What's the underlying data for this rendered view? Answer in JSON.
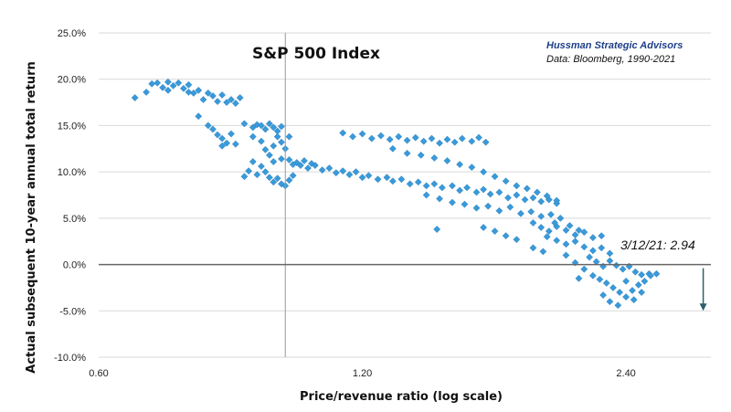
{
  "chart_data": {
    "type": "scatter",
    "title": "S&P 500 Index",
    "source_line1": "Hussman Strategic Advisors",
    "source_line2": "Data: Bloomberg, 1990-2021",
    "xlabel": "Price/revenue ratio (log scale)",
    "ylabel": "Actual subsequent 10-year annual total return",
    "x_scale": "log",
    "xlim": [
      0.6,
      3.0
    ],
    "ylim": [
      -0.1,
      0.25
    ],
    "x_ticks": [
      {
        "value": 0.6,
        "label": "0.60"
      },
      {
        "value": 1.2,
        "label": "1.20"
      },
      {
        "value": 2.4,
        "label": "2.40"
      }
    ],
    "y_ticks": [
      {
        "value": 0.25,
        "label": "25.0%"
      },
      {
        "value": 0.2,
        "label": "20.0%"
      },
      {
        "value": 0.15,
        "label": "15.0%"
      },
      {
        "value": 0.1,
        "label": "10.0%"
      },
      {
        "value": 0.05,
        "label": "5.0%"
      },
      {
        "value": 0.0,
        "label": "0.0%"
      },
      {
        "value": -0.05,
        "label": "-5.0%"
      },
      {
        "value": -0.1,
        "label": "-10.0%"
      }
    ],
    "grid": "horizontal",
    "zero_line": true,
    "reference_vline_x": 0.98,
    "marker_color": "#3a9ad9",
    "annotation": {
      "text": "3/12/21: 2.94",
      "x": 2.94,
      "arrow_to_y": -0.05
    },
    "series": [
      {
        "points": [
          [
            0.66,
            0.18
          ],
          [
            0.68,
            0.186
          ],
          [
            0.69,
            0.195
          ],
          [
            0.7,
            0.196
          ],
          [
            0.71,
            0.191
          ],
          [
            0.72,
            0.188
          ],
          [
            0.72,
            0.197
          ],
          [
            0.73,
            0.193
          ],
          [
            0.74,
            0.196
          ],
          [
            0.75,
            0.19
          ],
          [
            0.76,
            0.186
          ],
          [
            0.76,
            0.194
          ],
          [
            0.77,
            0.185
          ],
          [
            0.78,
            0.188
          ],
          [
            0.79,
            0.178
          ],
          [
            0.8,
            0.185
          ],
          [
            0.81,
            0.182
          ],
          [
            0.82,
            0.176
          ],
          [
            0.83,
            0.183
          ],
          [
            0.84,
            0.175
          ],
          [
            0.85,
            0.178
          ],
          [
            0.86,
            0.174
          ],
          [
            0.87,
            0.18
          ],
          [
            0.78,
            0.16
          ],
          [
            0.8,
            0.15
          ],
          [
            0.81,
            0.146
          ],
          [
            0.82,
            0.14
          ],
          [
            0.83,
            0.136
          ],
          [
            0.84,
            0.131
          ],
          [
            0.85,
            0.141
          ],
          [
            0.86,
            0.13
          ],
          [
            0.83,
            0.128
          ],
          [
            0.88,
            0.152
          ],
          [
            0.9,
            0.148
          ],
          [
            0.91,
            0.151
          ],
          [
            0.92,
            0.15
          ],
          [
            0.93,
            0.146
          ],
          [
            0.94,
            0.152
          ],
          [
            0.95,
            0.148
          ],
          [
            0.96,
            0.144
          ],
          [
            0.97,
            0.149
          ],
          [
            0.9,
            0.138
          ],
          [
            0.92,
            0.133
          ],
          [
            0.93,
            0.124
          ],
          [
            0.94,
            0.118
          ],
          [
            0.95,
            0.128
          ],
          [
            0.96,
            0.138
          ],
          [
            0.97,
            0.132
          ],
          [
            0.98,
            0.125
          ],
          [
            0.99,
            0.138
          ],
          [
            0.9,
            0.111
          ],
          [
            0.92,
            0.106
          ],
          [
            0.93,
            0.1
          ],
          [
            0.94,
            0.094
          ],
          [
            0.95,
            0.089
          ],
          [
            0.96,
            0.093
          ],
          [
            0.97,
            0.087
          ],
          [
            0.98,
            0.085
          ],
          [
            0.99,
            0.091
          ],
          [
            1.0,
            0.096
          ],
          [
            0.95,
            0.111
          ],
          [
            0.97,
            0.114
          ],
          [
            0.99,
            0.113
          ],
          [
            1.0,
            0.108
          ],
          [
            1.01,
            0.11
          ],
          [
            1.02,
            0.107
          ],
          [
            1.03,
            0.112
          ],
          [
            1.04,
            0.104
          ],
          [
            1.05,
            0.109
          ],
          [
            1.06,
            0.107
          ],
          [
            0.88,
            0.095
          ],
          [
            0.89,
            0.101
          ],
          [
            0.91,
            0.097
          ],
          [
            1.08,
            0.102
          ],
          [
            1.1,
            0.104
          ],
          [
            1.12,
            0.099
          ],
          [
            1.14,
            0.101
          ],
          [
            1.16,
            0.097
          ],
          [
            1.18,
            0.1
          ],
          [
            1.2,
            0.094
          ],
          [
            1.22,
            0.096
          ],
          [
            1.25,
            0.092
          ],
          [
            1.28,
            0.094
          ],
          [
            1.3,
            0.09
          ],
          [
            1.33,
            0.092
          ],
          [
            1.36,
            0.087
          ],
          [
            1.39,
            0.089
          ],
          [
            1.42,
            0.085
          ],
          [
            1.45,
            0.087
          ],
          [
            1.48,
            0.083
          ],
          [
            1.52,
            0.085
          ],
          [
            1.55,
            0.08
          ],
          [
            1.58,
            0.083
          ],
          [
            1.62,
            0.078
          ],
          [
            1.65,
            0.081
          ],
          [
            1.68,
            0.076
          ],
          [
            1.72,
            0.078
          ],
          [
            1.76,
            0.072
          ],
          [
            1.8,
            0.075
          ],
          [
            1.84,
            0.07
          ],
          [
            1.88,
            0.072
          ],
          [
            1.92,
            0.068
          ],
          [
            1.96,
            0.07
          ],
          [
            2.0,
            0.066
          ],
          [
            1.14,
            0.142
          ],
          [
            1.17,
            0.138
          ],
          [
            1.2,
            0.141
          ],
          [
            1.23,
            0.136
          ],
          [
            1.26,
            0.139
          ],
          [
            1.29,
            0.135
          ],
          [
            1.32,
            0.138
          ],
          [
            1.35,
            0.134
          ],
          [
            1.38,
            0.137
          ],
          [
            1.41,
            0.133
          ],
          [
            1.44,
            0.136
          ],
          [
            1.47,
            0.131
          ],
          [
            1.5,
            0.135
          ],
          [
            1.53,
            0.132
          ],
          [
            1.56,
            0.136
          ],
          [
            1.6,
            0.133
          ],
          [
            1.63,
            0.137
          ],
          [
            1.66,
            0.132
          ],
          [
            1.3,
            0.125
          ],
          [
            1.35,
            0.12
          ],
          [
            1.4,
            0.118
          ],
          [
            1.45,
            0.115
          ],
          [
            1.5,
            0.112
          ],
          [
            1.55,
            0.108
          ],
          [
            1.6,
            0.105
          ],
          [
            1.65,
            0.1
          ],
          [
            1.7,
            0.095
          ],
          [
            1.75,
            0.09
          ],
          [
            1.8,
            0.085
          ],
          [
            1.85,
            0.082
          ],
          [
            1.9,
            0.078
          ],
          [
            1.95,
            0.074
          ],
          [
            2.0,
            0.069
          ],
          [
            1.42,
            0.075
          ],
          [
            1.47,
            0.071
          ],
          [
            1.52,
            0.067
          ],
          [
            1.57,
            0.065
          ],
          [
            1.62,
            0.061
          ],
          [
            1.67,
            0.063
          ],
          [
            1.72,
            0.058
          ],
          [
            1.77,
            0.062
          ],
          [
            1.82,
            0.055
          ],
          [
            1.87,
            0.057
          ],
          [
            1.92,
            0.052
          ],
          [
            1.97,
            0.054
          ],
          [
            2.02,
            0.05
          ],
          [
            1.88,
            0.045
          ],
          [
            1.92,
            0.04
          ],
          [
            1.96,
            0.036
          ],
          [
            2.0,
            0.041
          ],
          [
            2.05,
            0.037
          ],
          [
            2.1,
            0.032
          ],
          [
            2.15,
            0.035
          ],
          [
            2.2,
            0.029
          ],
          [
            2.25,
            0.031
          ],
          [
            1.95,
            0.03
          ],
          [
            2.0,
            0.026
          ],
          [
            2.05,
            0.022
          ],
          [
            2.1,
            0.025
          ],
          [
            2.15,
            0.019
          ],
          [
            2.2,
            0.015
          ],
          [
            2.25,
            0.018
          ],
          [
            2.3,
            0.012
          ],
          [
            1.7,
            0.036
          ],
          [
            1.75,
            0.031
          ],
          [
            1.8,
            0.027
          ],
          [
            2.18,
            0.008
          ],
          [
            2.22,
            0.003
          ],
          [
            2.26,
            -0.002
          ],
          [
            2.3,
            0.004
          ],
          [
            2.34,
            -0.001
          ],
          [
            2.38,
            -0.005
          ],
          [
            2.42,
            -0.002
          ],
          [
            2.46,
            -0.008
          ],
          [
            2.5,
            -0.011
          ],
          [
            2.55,
            -0.01
          ],
          [
            2.2,
            -0.012
          ],
          [
            2.24,
            -0.016
          ],
          [
            2.28,
            -0.02
          ],
          [
            2.32,
            -0.025
          ],
          [
            2.36,
            -0.03
          ],
          [
            2.4,
            -0.035
          ],
          [
            2.44,
            -0.028
          ],
          [
            2.48,
            -0.022
          ],
          [
            2.52,
            -0.018
          ],
          [
            2.56,
            -0.012
          ],
          [
            2.35,
            -0.044
          ],
          [
            2.3,
            -0.04
          ],
          [
            2.26,
            -0.033
          ],
          [
            2.45,
            -0.038
          ],
          [
            2.6,
            -0.01
          ],
          [
            2.5,
            -0.03
          ],
          [
            2.15,
            -0.005
          ],
          [
            2.1,
            0.002
          ],
          [
            2.05,
            0.01
          ],
          [
            1.65,
            0.04
          ],
          [
            1.46,
            0.038
          ],
          [
            1.88,
            0.018
          ],
          [
            1.93,
            0.014
          ],
          [
            2.12,
            -0.015
          ],
          [
            2.4,
            -0.018
          ],
          [
            1.99,
            0.045
          ],
          [
            2.07,
            0.042
          ],
          [
            2.12,
            0.037
          ]
        ]
      }
    ]
  }
}
